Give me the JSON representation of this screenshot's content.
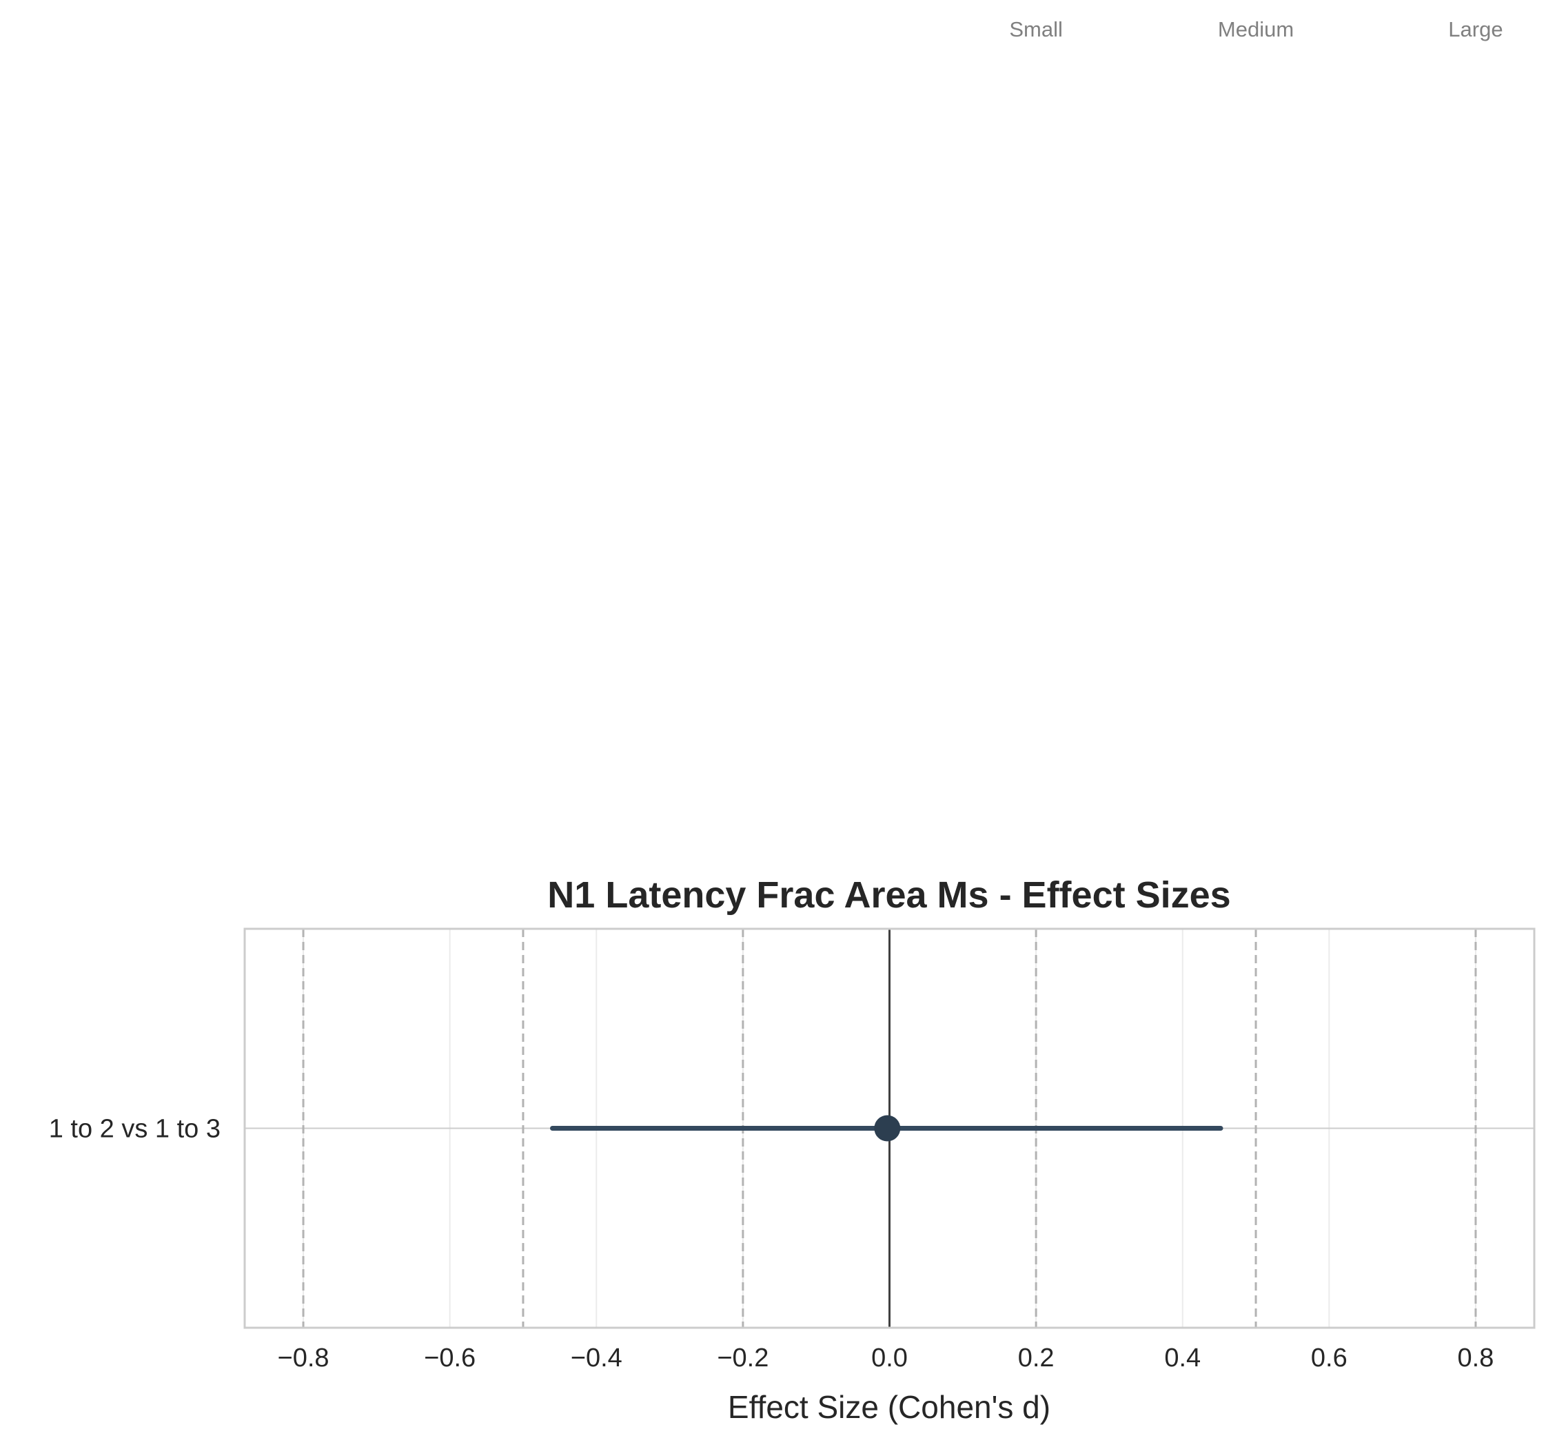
{
  "chart_data": {
    "type": "scatter",
    "subtype": "forest-plot",
    "title": "N1 Latency Frac Area Ms - Effect Sizes",
    "xlabel": "Effect Size (Cohen's d)",
    "ylabel": "",
    "xlim": [
      -0.88,
      0.88
    ],
    "xticks": [
      -0.8,
      -0.6,
      -0.4,
      -0.2,
      0.0,
      0.2,
      0.4,
      0.6,
      0.8
    ],
    "xtick_labels": [
      "−0.8",
      "−0.6",
      "−0.4",
      "−0.2",
      "0.0",
      "0.2",
      "0.4",
      "0.6",
      "0.8"
    ],
    "categories": [
      "1 to 2 vs 1 to 3"
    ],
    "points": [
      {
        "label": "1 to 2 vs 1 to 3",
        "effect": -0.003,
        "ci_low": -0.46,
        "ci_high": 0.452
      }
    ],
    "reference_lines": {
      "zero": 0.0,
      "dashed": [
        -0.8,
        -0.5,
        -0.2,
        0.2,
        0.5,
        0.8
      ]
    },
    "threshold_labels": [
      {
        "text": "Small",
        "x": 0.2
      },
      {
        "text": "Medium",
        "x": 0.5
      },
      {
        "text": "Large",
        "x": 0.8
      }
    ],
    "grid": true,
    "legend": "none",
    "colors": {
      "point": "#2c3e50",
      "ci_line": "#34495e",
      "zero_line": "#404040",
      "dashed_line": "#b3b3b3",
      "grid": "#ebebeb",
      "frame": "#cccccc",
      "threshold_text": "#808080"
    }
  }
}
